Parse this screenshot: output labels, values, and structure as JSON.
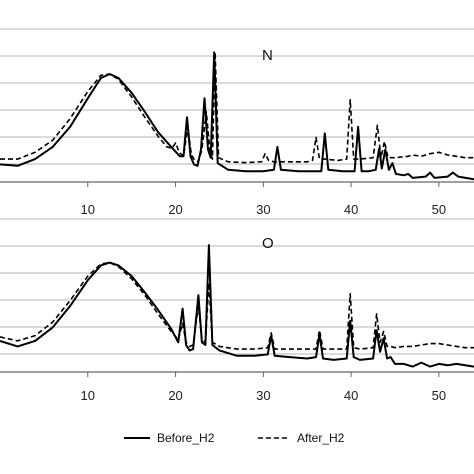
{
  "legend": {
    "position": "bottom",
    "entries": [
      {
        "label": "Before_H2",
        "style": "solid"
      },
      {
        "label": "After_H2",
        "style": "dashed"
      }
    ]
  },
  "colors": {
    "line": "#000000",
    "grid": "#b4b4b4",
    "axis": "#666666",
    "background": "#ffffff"
  },
  "chart_data": [
    {
      "type": "line",
      "panel_label": "N",
      "title": "",
      "xlabel": "",
      "ylabel": "",
      "xlim": [
        0,
        54
      ],
      "ylim": [
        0,
        6
      ],
      "x_ticks": [
        10,
        20,
        30,
        40,
        50
      ],
      "x_tick_labels": [
        "10",
        "20",
        "30",
        "40",
        "50"
      ],
      "grid": "horizontal",
      "gridlines_y": [
        1,
        2,
        3,
        4,
        5,
        6
      ],
      "series": [
        {
          "name": "Before_H2",
          "line_style": "solid",
          "points": [
            [
              0,
              0.65
            ],
            [
              2,
              0.6
            ],
            [
              4,
              0.85
            ],
            [
              6,
              1.3
            ],
            [
              8,
              2.05
            ],
            [
              10,
              3.1
            ],
            [
              11.5,
              3.85
            ],
            [
              12.5,
              4.0
            ],
            [
              13.5,
              3.85
            ],
            [
              15,
              3.3
            ],
            [
              16.5,
              2.6
            ],
            [
              18,
              1.85
            ],
            [
              19.5,
              1.3
            ],
            [
              20.5,
              0.95
            ],
            [
              20.9,
              0.95
            ],
            [
              21.3,
              2.4
            ],
            [
              21.7,
              0.95
            ],
            [
              22.1,
              0.65
            ],
            [
              22.5,
              0.6
            ],
            [
              22.9,
              1.2
            ],
            [
              23.3,
              3.1
            ],
            [
              23.7,
              1.2
            ],
            [
              24.0,
              0.9
            ],
            [
              24.4,
              4.8
            ],
            [
              24.8,
              0.7
            ],
            [
              26,
              0.45
            ],
            [
              28,
              0.4
            ],
            [
              30,
              0.4
            ],
            [
              31.2,
              0.45
            ],
            [
              31.6,
              1.3
            ],
            [
              32.0,
              0.45
            ],
            [
              34,
              0.4
            ],
            [
              36,
              0.4
            ],
            [
              36.6,
              0.4
            ],
            [
              37.0,
              1.8
            ],
            [
              37.4,
              0.45
            ],
            [
              39,
              0.4
            ],
            [
              40.4,
              0.4
            ],
            [
              40.8,
              2.05
            ],
            [
              41.2,
              0.4
            ],
            [
              42,
              0.4
            ],
            [
              42.8,
              0.45
            ],
            [
              43.2,
              1.25
            ],
            [
              43.5,
              0.5
            ],
            [
              43.9,
              1.2
            ],
            [
              44.3,
              0.45
            ],
            [
              44.7,
              0.7
            ],
            [
              45.1,
              0.3
            ],
            [
              46,
              0.25
            ],
            [
              46.5,
              0.3
            ],
            [
              47,
              0.15
            ],
            [
              48.5,
              0.2
            ],
            [
              49,
              0.35
            ],
            [
              49.5,
              0.15
            ],
            [
              51,
              0.2
            ],
            [
              51.6,
              0.35
            ],
            [
              52.2,
              0.2
            ],
            [
              54,
              0.1
            ]
          ]
        },
        {
          "name": "After_H2",
          "line_style": "dashed",
          "points": [
            [
              0,
              0.85
            ],
            [
              2,
              0.85
            ],
            [
              4,
              1.1
            ],
            [
              6,
              1.55
            ],
            [
              8,
              2.35
            ],
            [
              10,
              3.35
            ],
            [
              11.5,
              3.95
            ],
            [
              12.5,
              4.0
            ],
            [
              13.5,
              3.8
            ],
            [
              15,
              3.15
            ],
            [
              16.5,
              2.4
            ],
            [
              18,
              1.7
            ],
            [
              19,
              1.3
            ],
            [
              19.6,
              1.25
            ],
            [
              20.0,
              1.45
            ],
            [
              20.4,
              1.1
            ],
            [
              20.9,
              0.95
            ],
            [
              21.4,
              2.05
            ],
            [
              21.8,
              1.0
            ],
            [
              22.2,
              0.8
            ],
            [
              22.6,
              0.75
            ],
            [
              23.0,
              1.2
            ],
            [
              23.5,
              2.6
            ],
            [
              23.9,
              1.2
            ],
            [
              24.2,
              0.85
            ],
            [
              24.5,
              4.8
            ],
            [
              24.9,
              0.9
            ],
            [
              26,
              0.75
            ],
            [
              28,
              0.72
            ],
            [
              29.8,
              0.75
            ],
            [
              30.2,
              1.05
            ],
            [
              30.6,
              0.8
            ],
            [
              31.2,
              0.75
            ],
            [
              33,
              0.75
            ],
            [
              35,
              0.75
            ],
            [
              35.6,
              0.8
            ],
            [
              36.0,
              1.65
            ],
            [
              36.4,
              0.85
            ],
            [
              37,
              0.85
            ],
            [
              38.5,
              0.8
            ],
            [
              39.5,
              0.85
            ],
            [
              39.9,
              3.05
            ],
            [
              40.3,
              0.85
            ],
            [
              41,
              0.85
            ],
            [
              42.5,
              0.9
            ],
            [
              43.0,
              2.1
            ],
            [
              43.4,
              0.9
            ],
            [
              43.8,
              1.5
            ],
            [
              44.2,
              0.9
            ],
            [
              45,
              0.9
            ],
            [
              46.5,
              0.95
            ],
            [
              47,
              1.0
            ],
            [
              48,
              0.95
            ],
            [
              49,
              1.05
            ],
            [
              50,
              1.1
            ],
            [
              51,
              1.0
            ],
            [
              52,
              0.95
            ],
            [
              53,
              0.9
            ],
            [
              54,
              0.9
            ]
          ]
        }
      ]
    },
    {
      "type": "line",
      "panel_label": "O",
      "title": "",
      "xlabel": "",
      "ylabel": "",
      "xlim": [
        0,
        54
      ],
      "ylim": [
        0,
        6
      ],
      "x_ticks": [
        10,
        20,
        30,
        40,
        50
      ],
      "x_tick_labels": [
        "10",
        "20",
        "30",
        "40",
        "50"
      ],
      "grid": "horizontal",
      "gridlines_y": [
        1,
        2,
        3,
        4,
        5,
        6
      ],
      "series": [
        {
          "name": "Before_H2",
          "line_style": "solid",
          "points": [
            [
              0,
              1.15
            ],
            [
              2,
              0.95
            ],
            [
              4,
              1.15
            ],
            [
              6,
              1.65
            ],
            [
              8,
              2.45
            ],
            [
              10,
              3.4
            ],
            [
              11.5,
              3.95
            ],
            [
              12.5,
              4.05
            ],
            [
              13.5,
              3.95
            ],
            [
              15,
              3.55
            ],
            [
              16.5,
              2.95
            ],
            [
              18,
              2.3
            ],
            [
              19.5,
              1.6
            ],
            [
              20.3,
              1.1
            ],
            [
              20.8,
              2.35
            ],
            [
              21.2,
              1.0
            ],
            [
              21.6,
              0.8
            ],
            [
              22.0,
              0.85
            ],
            [
              22.6,
              2.85
            ],
            [
              23.0,
              1.1
            ],
            [
              23.4,
              1.0
            ],
            [
              23.8,
              4.7
            ],
            [
              24.2,
              1.0
            ],
            [
              25,
              0.8
            ],
            [
              27,
              0.6
            ],
            [
              29,
              0.6
            ],
            [
              30.5,
              0.65
            ],
            [
              30.9,
              1.35
            ],
            [
              31.3,
              0.6
            ],
            [
              33,
              0.55
            ],
            [
              35,
              0.5
            ],
            [
              36.0,
              0.55
            ],
            [
              36.4,
              1.4
            ],
            [
              36.8,
              0.5
            ],
            [
              38,
              0.45
            ],
            [
              39.5,
              0.5
            ],
            [
              39.9,
              1.9
            ],
            [
              40.3,
              0.55
            ],
            [
              41,
              0.45
            ],
            [
              42.5,
              0.5
            ],
            [
              42.9,
              1.55
            ],
            [
              43.3,
              0.75
            ],
            [
              43.7,
              1.25
            ],
            [
              44.1,
              0.5
            ],
            [
              44.5,
              0.55
            ],
            [
              45,
              0.3
            ],
            [
              46,
              0.3
            ],
            [
              47,
              0.2
            ],
            [
              48,
              0.35
            ],
            [
              49,
              0.2
            ],
            [
              50,
              0.3
            ],
            [
              51,
              0.25
            ],
            [
              52,
              0.3
            ],
            [
              54,
              0.2
            ]
          ]
        },
        {
          "name": "After_H2",
          "line_style": "dashed",
          "points": [
            [
              0,
              1.3
            ],
            [
              2,
              1.15
            ],
            [
              4,
              1.35
            ],
            [
              6,
              1.85
            ],
            [
              8,
              2.65
            ],
            [
              10,
              3.55
            ],
            [
              11.5,
              4.0
            ],
            [
              12.5,
              4.05
            ],
            [
              13.5,
              3.9
            ],
            [
              15,
              3.45
            ],
            [
              16.5,
              2.85
            ],
            [
              18,
              2.15
            ],
            [
              19.5,
              1.5
            ],
            [
              20.3,
              1.2
            ],
            [
              20.8,
              1.8
            ],
            [
              21.2,
              1.1
            ],
            [
              21.6,
              0.95
            ],
            [
              22.0,
              1.0
            ],
            [
              22.6,
              2.45
            ],
            [
              23.0,
              1.2
            ],
            [
              23.4,
              1.1
            ],
            [
              23.8,
              3.3
            ],
            [
              24.2,
              1.1
            ],
            [
              25,
              0.95
            ],
            [
              27,
              0.85
            ],
            [
              29,
              0.85
            ],
            [
              30.5,
              0.9
            ],
            [
              30.9,
              1.45
            ],
            [
              31.3,
              0.85
            ],
            [
              33,
              0.85
            ],
            [
              35,
              0.85
            ],
            [
              36.0,
              0.85
            ],
            [
              36.4,
              1.55
            ],
            [
              36.8,
              0.85
            ],
            [
              38,
              0.85
            ],
            [
              39.5,
              0.85
            ],
            [
              39.9,
              2.9
            ],
            [
              40.3,
              0.9
            ],
            [
              41,
              0.85
            ],
            [
              42.5,
              0.9
            ],
            [
              42.9,
              2.15
            ],
            [
              43.3,
              1.1
            ],
            [
              43.7,
              1.5
            ],
            [
              44.1,
              0.95
            ],
            [
              44.5,
              0.95
            ],
            [
              45,
              0.9
            ],
            [
              46,
              0.95
            ],
            [
              47,
              0.95
            ],
            [
              48,
              1.0
            ],
            [
              49,
              1.05
            ],
            [
              50,
              1.05
            ],
            [
              51,
              1.0
            ],
            [
              52,
              0.95
            ],
            [
              53,
              0.9
            ],
            [
              54,
              0.9
            ]
          ]
        }
      ]
    }
  ]
}
